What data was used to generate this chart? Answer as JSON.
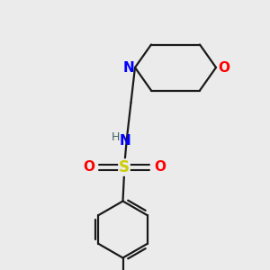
{
  "bg_color": "#ebebeb",
  "bond_color": "#1a1a1a",
  "N_color": "#0000ff",
  "O_color": "#ff0000",
  "S_color": "#cccc00",
  "H_color": "#406060",
  "line_width": 1.6,
  "figsize": [
    3.0,
    3.0
  ],
  "dpi": 100,
  "xlim": [
    0,
    10
  ],
  "ylim": [
    0,
    10
  ]
}
